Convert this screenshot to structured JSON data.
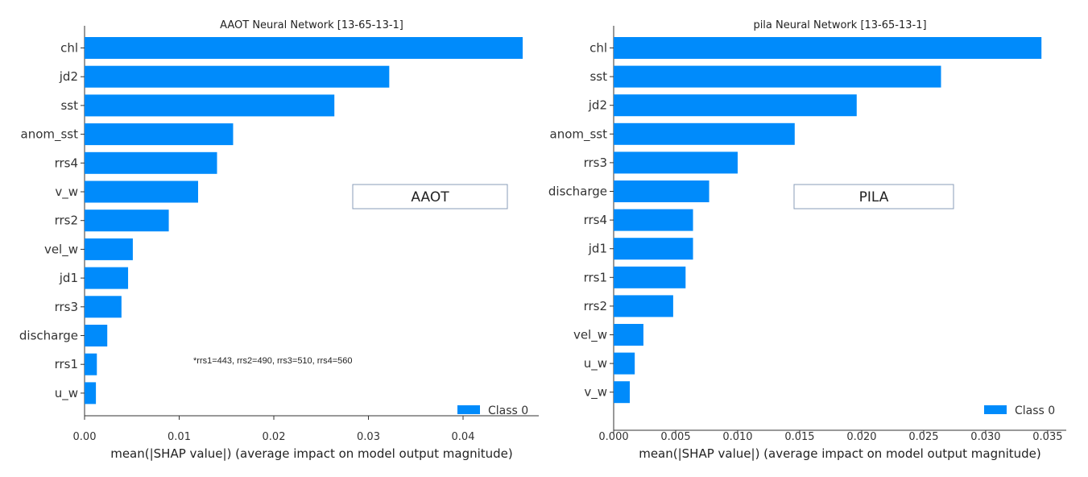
{
  "chart_data": [
    {
      "type": "bar",
      "orientation": "horizontal",
      "title": "AAOT Neural Network [13-65-13-1]",
      "xlabel": "mean(|SHAP value|) (average impact on model output magnitude)",
      "ylabel": "",
      "categories": [
        "chl",
        "jd2",
        "sst",
        "anom_sst",
        "rrs4",
        "v_w",
        "rrs2",
        "vel_w",
        "jd1",
        "rrs3",
        "discharge",
        "rrs1",
        "u_w"
      ],
      "series": [
        {
          "name": "Class 0",
          "color": "#008bfb",
          "values": [
            0.0463,
            0.0322,
            0.0264,
            0.0157,
            0.014,
            0.012,
            0.0089,
            0.0051,
            0.0046,
            0.0039,
            0.0024,
            0.0013,
            0.0012
          ]
        }
      ],
      "xlim": [
        0,
        0.048
      ],
      "xticks": [
        0.0,
        0.01,
        0.02,
        0.03,
        0.04
      ],
      "xtick_labels": [
        "0.00",
        "0.01",
        "0.02",
        "0.03",
        "0.04"
      ],
      "legend": "bottom-right",
      "grid": false,
      "box_label": "AAOT",
      "annotation": "*rrs1=443, rrs2=490, rrs3=510, rrs4=560"
    },
    {
      "type": "bar",
      "orientation": "horizontal",
      "title": "pila Neural Network [13-65-13-1]",
      "xlabel": "mean(|SHAP value|) (average impact on model output magnitude)",
      "ylabel": "",
      "categories": [
        "chl",
        "sst",
        "jd2",
        "anom_sst",
        "rrs3",
        "discharge",
        "rrs4",
        "jd1",
        "rrs1",
        "rrs2",
        "vel_w",
        "u_w",
        "v_w"
      ],
      "series": [
        {
          "name": "Class 0",
          "color": "#008bfb",
          "values": [
            0.0345,
            0.0264,
            0.0196,
            0.0146,
            0.01,
            0.0077,
            0.0064,
            0.0064,
            0.0058,
            0.0048,
            0.0024,
            0.0017,
            0.0013
          ]
        }
      ],
      "xlim": [
        0,
        0.0365
      ],
      "xticks": [
        0.0,
        0.005,
        0.01,
        0.015,
        0.02,
        0.025,
        0.03,
        0.035
      ],
      "xtick_labels": [
        "0.000",
        "0.005",
        "0.010",
        "0.015",
        "0.020",
        "0.025",
        "0.030",
        "0.035"
      ],
      "legend": "bottom-right",
      "grid": false,
      "box_label": "PILA",
      "annotation": ""
    }
  ]
}
